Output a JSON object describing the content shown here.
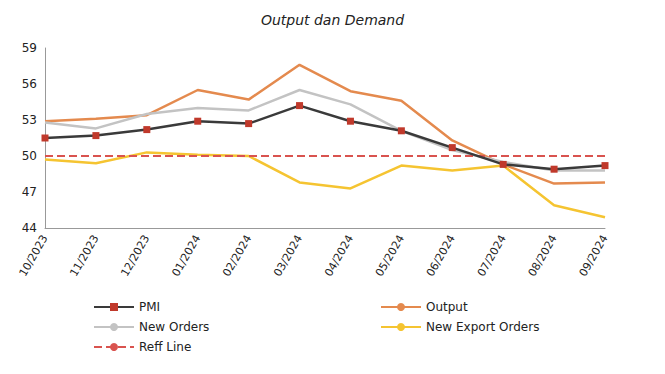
{
  "chart_data": {
    "type": "line",
    "title": "Output dan Demand",
    "categories": [
      "10/2023",
      "11/2023",
      "12/2023",
      "01/2024",
      "02/2024",
      "03/2024",
      "04/2024",
      "05/2024",
      "06/2024",
      "07/2024",
      "08/2024",
      "09/2024"
    ],
    "series": [
      {
        "name": "PMI",
        "color": "#3a3a3a",
        "marker": "square",
        "values": [
          51.5,
          51.7,
          52.2,
          52.9,
          52.7,
          54.2,
          52.9,
          52.1,
          50.7,
          49.3,
          48.9,
          49.2
        ]
      },
      {
        "name": "Output",
        "color": "#e48a4e",
        "values": [
          52.9,
          53.1,
          53.4,
          55.5,
          54.7,
          57.6,
          55.4,
          54.6,
          51.3,
          49.3,
          47.7,
          47.8
        ]
      },
      {
        "name": "New Orders",
        "color": "#c3c3c3",
        "values": [
          52.8,
          52.3,
          53.5,
          54.0,
          53.8,
          55.5,
          54.3,
          52.1,
          50.5,
          49.5,
          48.8,
          48.8
        ]
      },
      {
        "name": "New Export Orders",
        "color": "#f5c431",
        "values": [
          49.7,
          49.4,
          50.3,
          50.1,
          50.0,
          47.8,
          47.3,
          49.2,
          48.8,
          49.2,
          45.9,
          44.9
        ]
      },
      {
        "name": "Reff Line",
        "color": "#d9534f",
        "line_style": "dashed",
        "values": [
          50,
          50,
          50,
          50,
          50,
          50,
          50,
          50,
          50,
          50,
          50,
          50
        ]
      }
    ],
    "ylim": [
      44,
      59
    ],
    "yticks": [
      44,
      47,
      50,
      53,
      56,
      59
    ],
    "grid": false,
    "legend": "bottom"
  }
}
